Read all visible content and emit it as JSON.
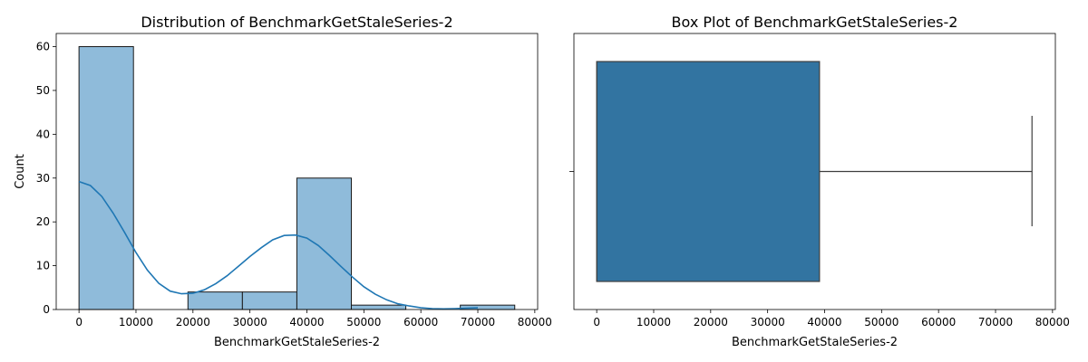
{
  "chart_data": [
    {
      "type": "histogram",
      "title": "Distribution of BenchmarkGetStaleSeries-2",
      "xlabel": "BenchmarkGetStaleSeries-2",
      "ylabel": "Count",
      "xlim": [
        -4000,
        80500
      ],
      "ylim": [
        0,
        63
      ],
      "xticks": [
        0,
        10000,
        20000,
        30000,
        40000,
        50000,
        60000,
        70000,
        80000
      ],
      "yticks": [
        0,
        10,
        20,
        30,
        40,
        50,
        60
      ],
      "bins": [
        {
          "x0": 0,
          "x1": 9560,
          "count": 60
        },
        {
          "x0": 9560,
          "x1": 19120,
          "count": 0
        },
        {
          "x0": 19120,
          "x1": 28680,
          "count": 4
        },
        {
          "x0": 28680,
          "x1": 38240,
          "count": 4
        },
        {
          "x0": 38240,
          "x1": 47800,
          "count": 30
        },
        {
          "x0": 47800,
          "x1": 57360,
          "count": 1
        },
        {
          "x0": 57360,
          "x1": 66920,
          "count": 0
        },
        {
          "x0": 66920,
          "x1": 76480,
          "count": 1
        }
      ],
      "kde": {
        "x": [
          0,
          2000,
          4000,
          6000,
          8000,
          10000,
          12000,
          14000,
          16000,
          18000,
          20000,
          22000,
          24000,
          26000,
          28000,
          30000,
          32000,
          34000,
          36000,
          38000,
          40000,
          42000,
          44000,
          46000,
          48000,
          50000,
          52000,
          54000,
          56000,
          58000,
          60000,
          62000,
          64000,
          66000,
          68000,
          70000
        ],
        "y": [
          29.2,
          28.3,
          25.8,
          22.0,
          17.6,
          13.0,
          9.0,
          6.0,
          4.2,
          3.6,
          3.7,
          4.5,
          5.9,
          7.7,
          9.9,
          12.1,
          14.1,
          15.9,
          16.9,
          17.0,
          16.3,
          14.6,
          12.3,
          9.8,
          7.4,
          5.2,
          3.5,
          2.2,
          1.3,
          0.8,
          0.4,
          0.2,
          0.15,
          0.2,
          0.3,
          0.4
        ]
      },
      "colors": {
        "bar": "#8fbbda",
        "bar_edge": "#1a1a1a",
        "kde": "#1f77b4"
      }
    },
    {
      "type": "box",
      "title": "Box Plot of BenchmarkGetStaleSeries-2",
      "xlabel": "BenchmarkGetStaleSeries-2",
      "xlim": [
        -4000,
        80500
      ],
      "xticks": [
        0,
        10000,
        20000,
        30000,
        40000,
        50000,
        60000,
        70000,
        80000
      ],
      "box": {
        "min": 0,
        "q1": 0,
        "median": 0,
        "q3": 39100,
        "max": 76400
      },
      "colors": {
        "box": "#3274a1",
        "edge": "#3f3f3f"
      }
    }
  ]
}
